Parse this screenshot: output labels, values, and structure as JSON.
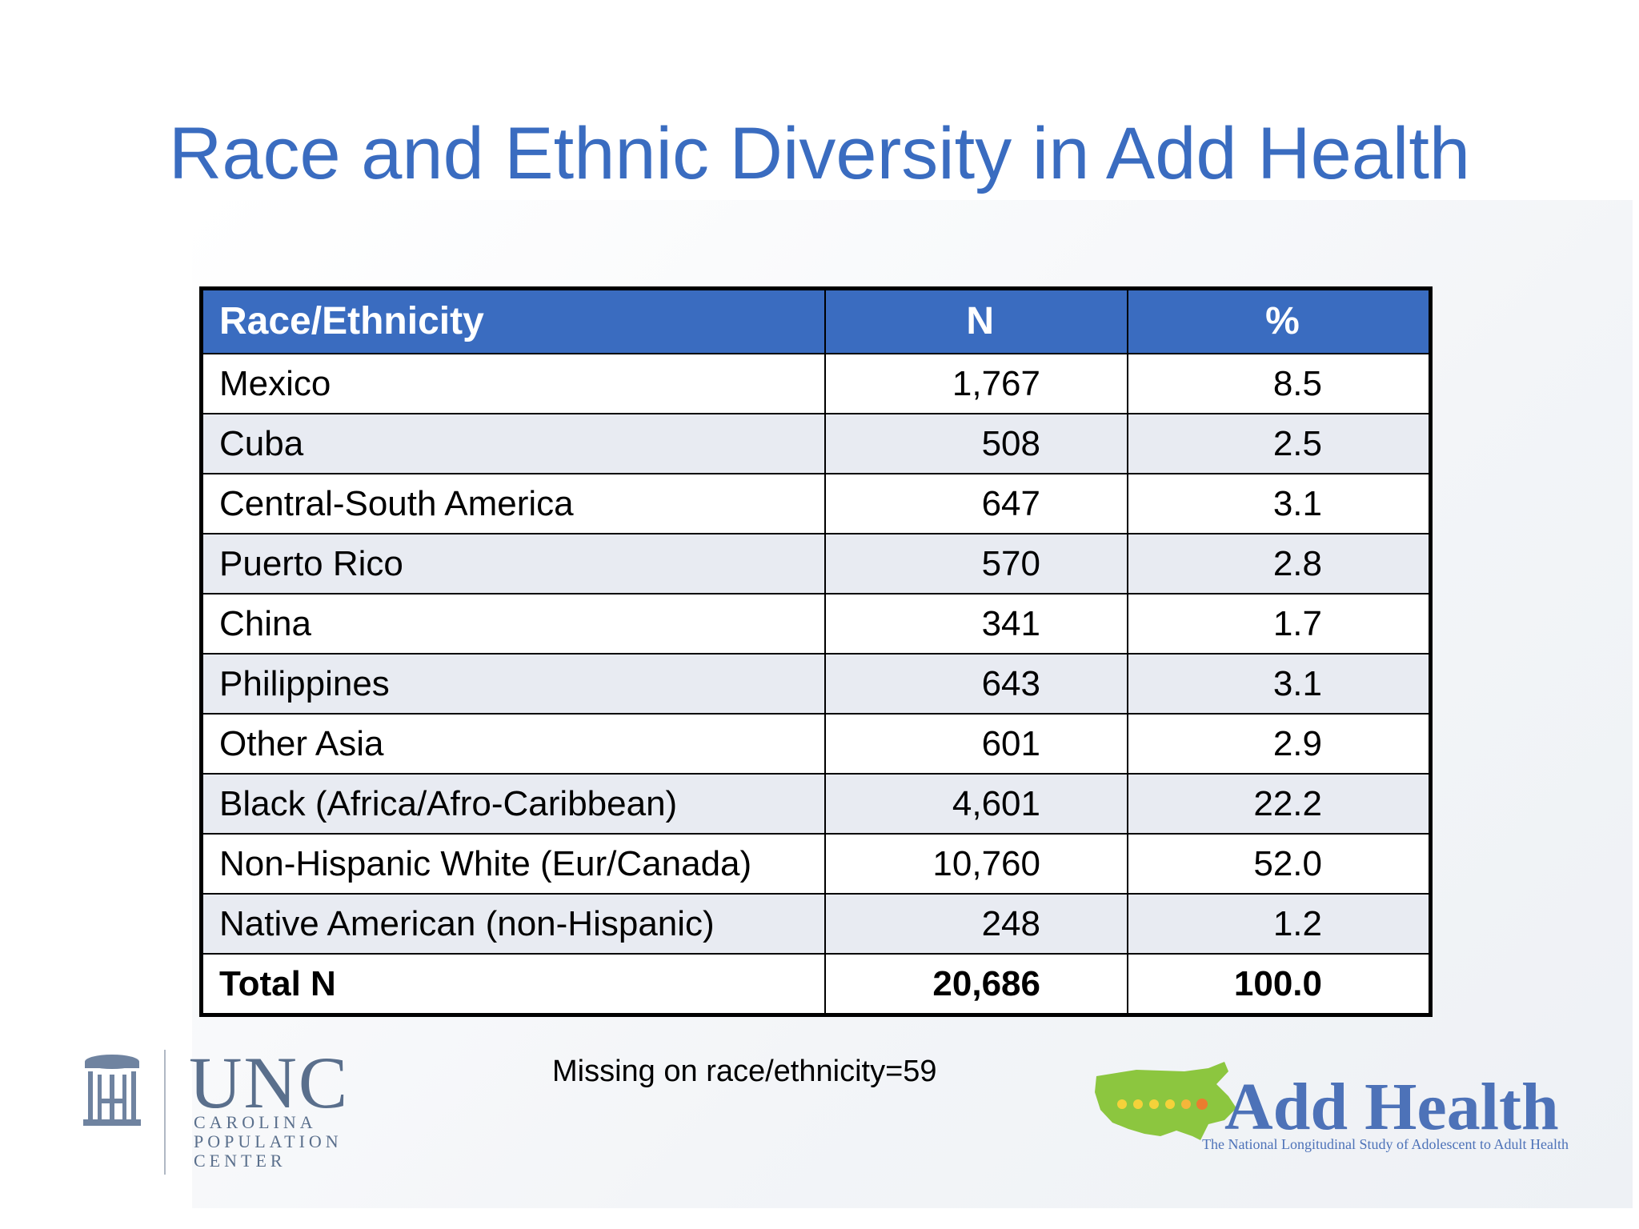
{
  "slide": {
    "title": "Race and Ethnic Diversity in Add Health",
    "note": "Missing on race/ethnicity=59"
  },
  "table": {
    "headers": [
      "Race/Ethnicity",
      "N",
      "%"
    ],
    "rows": [
      [
        "Mexico",
        "1,767",
        "8.5"
      ],
      [
        "Cuba",
        "508",
        "2.5"
      ],
      [
        "Central-South America",
        "647",
        "3.1"
      ],
      [
        "Puerto Rico",
        "570",
        "2.8"
      ],
      [
        "China",
        "341",
        "1.7"
      ],
      [
        "Philippines",
        "643",
        "3.1"
      ],
      [
        "Other Asia",
        "601",
        "2.9"
      ],
      [
        "Black (Africa/Afro-Caribbean)",
        "4,601",
        "22.2"
      ],
      [
        "Non-Hispanic White (Eur/Canada)",
        "10,760",
        "52.0"
      ],
      [
        "Native American (non-Hispanic)",
        "248",
        "1.2"
      ]
    ],
    "total": [
      "Total N",
      "20,686",
      "100.0"
    ]
  },
  "logos": {
    "unc": {
      "main": "UNC",
      "line1": "CAROLINA",
      "line2": "POPULATION",
      "line3": "CENTER",
      "icon": "old-well-icon"
    },
    "addhealth": {
      "main": "Add Health",
      "tagline": "The National Longitudinal Study of Adolescent to Adult Health",
      "icon": "us-map-icon"
    }
  },
  "colors": {
    "title": "#3a6cc0",
    "header_bg": "#3a6cc0",
    "row_alt": "#e8ebf2",
    "unc": "#5a6f8c",
    "addhealth_blue": "#4d72b8",
    "map_green": "#8cc63f"
  }
}
